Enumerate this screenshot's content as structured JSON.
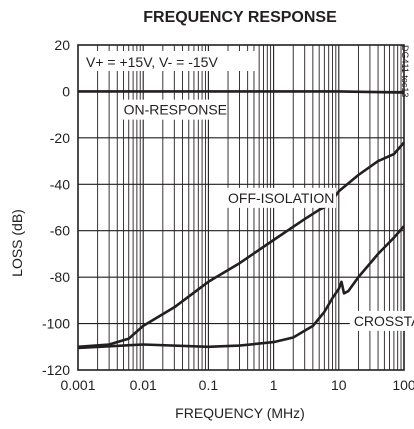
{
  "chart_data": {
    "type": "line",
    "title": "FREQUENCY RESPONSE",
    "xlabel": "FREQUENCY (MHz)",
    "ylabel": "LOSS (dB)",
    "xscale": "log",
    "xlim": [
      0.001,
      100
    ],
    "ylim": [
      -120,
      20
    ],
    "x_ticks": [
      "0.001",
      "0.01",
      "0.1",
      "1",
      "10",
      "100"
    ],
    "y_ticks": [
      "20",
      "0",
      "-20",
      "-40",
      "-60",
      "-80",
      "-100",
      "-120"
    ],
    "grid": true,
    "annotations": {
      "conditions": "V+ = +15V, V- = -15V",
      "figure_code": "DG411 toc13"
    },
    "series": [
      {
        "name": "ON-RESPONSE",
        "points": [
          [
            0.001,
            0
          ],
          [
            0.01,
            0
          ],
          [
            0.1,
            0
          ],
          [
            1,
            0
          ],
          [
            10,
            0
          ],
          [
            100,
            -0.5
          ]
        ]
      },
      {
        "name": "OFF-ISOLATION",
        "points": [
          [
            0.001,
            -110
          ],
          [
            0.003,
            -109
          ],
          [
            0.006,
            -106.5
          ],
          [
            0.01,
            -101
          ],
          [
            0.03,
            -93
          ],
          [
            0.1,
            -82
          ],
          [
            0.3,
            -74
          ],
          [
            1,
            -64
          ],
          [
            3,
            -55
          ],
          [
            5,
            -51
          ],
          [
            7,
            -49
          ],
          [
            10,
            -43
          ],
          [
            20,
            -36
          ],
          [
            40,
            -30
          ],
          [
            70,
            -27
          ],
          [
            100,
            -22
          ]
        ]
      },
      {
        "name": "CROSSTALK",
        "points": [
          [
            0.001,
            -110.5
          ],
          [
            0.01,
            -109
          ],
          [
            0.1,
            -110
          ],
          [
            0.3,
            -109.5
          ],
          [
            1,
            -108
          ],
          [
            2,
            -106
          ],
          [
            4,
            -101
          ],
          [
            6,
            -95
          ],
          [
            8,
            -89
          ],
          [
            10,
            -85
          ],
          [
            11,
            -82
          ],
          [
            12,
            -87
          ],
          [
            14,
            -86
          ],
          [
            20,
            -80
          ],
          [
            40,
            -70
          ],
          [
            70,
            -63
          ],
          [
            100,
            -58
          ]
        ]
      }
    ]
  }
}
